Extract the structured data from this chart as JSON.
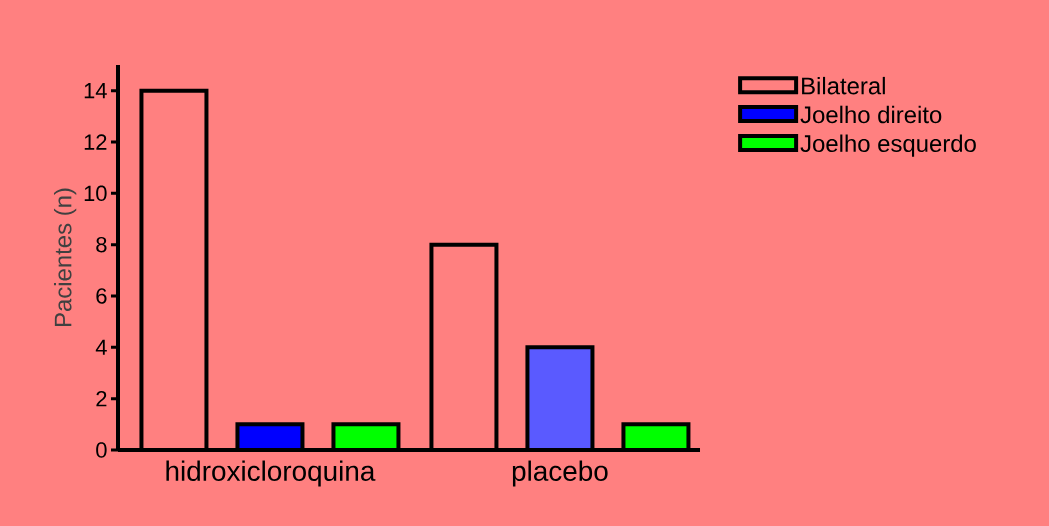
{
  "chart_data": {
    "type": "bar",
    "categories": [
      "hidroxicloroquina",
      "placebo"
    ],
    "ylabel": "Pacientes (n)",
    "ylim": [
      0,
      15
    ],
    "yticks": [
      0,
      2,
      4,
      6,
      8,
      10,
      12,
      14
    ],
    "grid": false,
    "legend": "top right",
    "series": [
      {
        "name": "Bilateral",
        "color": "#ff8080",
        "values": [
          14,
          8
        ]
      },
      {
        "name": "Joelho direito",
        "color": "#0000ff",
        "colors": [
          "#0000ff",
          "#5a5aff"
        ],
        "values": [
          1,
          4
        ]
      },
      {
        "name": "Joelho esquerdo",
        "color": "#00ff00",
        "values": [
          1,
          1
        ]
      }
    ]
  }
}
